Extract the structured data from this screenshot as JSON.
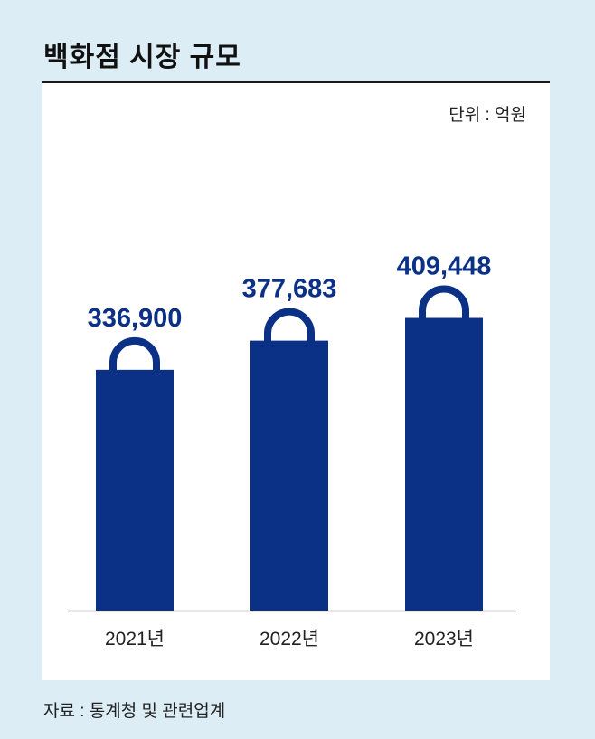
{
  "title": "백화점 시장 규모",
  "unit_label": "단위 : 억원",
  "source": "자료 : 통계청 및 관련업계",
  "colors": {
    "bar": "#0a3186",
    "background": "#dcedf6",
    "panel": "#ffffff"
  },
  "chart_data": {
    "type": "bar",
    "title": "백화점 시장 규모",
    "categories": [
      "2021년",
      "2022년",
      "2023년"
    ],
    "values": [
      336900,
      377683,
      409448
    ],
    "value_labels": [
      "336,900",
      "377,683",
      "409,448"
    ],
    "xlabel": "",
    "ylabel": "",
    "ylim": [
      0,
      510000
    ],
    "grid": false,
    "legend": "none"
  }
}
